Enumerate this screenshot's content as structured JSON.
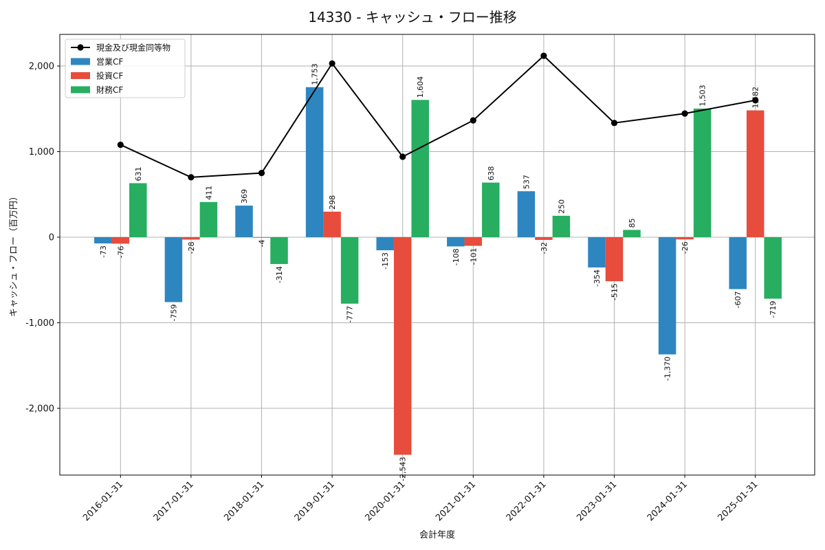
{
  "chart_data": {
    "type": "bar",
    "title": "14330 - キャッシュ・フロー推移",
    "xlabel": "会計年度",
    "ylabel": "キャッシュ・フロー（百万円）",
    "categories": [
      "2016-01-31",
      "2017-01-31",
      "2018-01-31",
      "2019-01-31",
      "2020-01-31",
      "2021-01-31",
      "2022-01-31",
      "2023-01-31",
      "2024-01-31",
      "2025-01-31"
    ],
    "ylim": [
      -2780,
      2370
    ],
    "yticks": [
      -2000,
      -1000,
      0,
      1000,
      2000
    ],
    "ytick_labels": [
      "-2,000",
      "-1,000",
      "0",
      "1,000",
      "2,000"
    ],
    "grid": true,
    "legend_position": "top-left",
    "series": [
      {
        "name": "営業CF",
        "color": "#2e86c1",
        "values": [
          -73,
          -759,
          369,
          1753,
          -153,
          -108,
          537,
          -354,
          -1370,
          -607
        ],
        "labels": [
          "-73",
          "-759",
          "369",
          "1,753",
          "-153",
          "-108",
          "537",
          "-354",
          "-1,370",
          "-607"
        ]
      },
      {
        "name": "投資CF",
        "color": "#e74c3c",
        "values": [
          -76,
          -28,
          -4,
          298,
          -2543,
          -101,
          -32,
          -515,
          -26,
          1482
        ],
        "labels": [
          "-76",
          "-28",
          "-4",
          "298",
          "-2,543",
          "-101",
          "-32",
          "-515",
          "-26",
          "1,482"
        ]
      },
      {
        "name": "財務CF",
        "color": "#27ae60",
        "values": [
          631,
          411,
          -314,
          -777,
          1604,
          638,
          250,
          85,
          1503,
          -719
        ],
        "labels": [
          "631",
          "411",
          "-314",
          "-777",
          "1,604",
          "638",
          "250",
          "85",
          "1,503",
          "-719"
        ]
      }
    ],
    "line_series": {
      "name": "現金及び現金同等物",
      "color": "#000000",
      "values": [
        1080,
        700,
        750,
        2030,
        940,
        1365,
        2120,
        1335,
        1445,
        1600
      ]
    }
  }
}
